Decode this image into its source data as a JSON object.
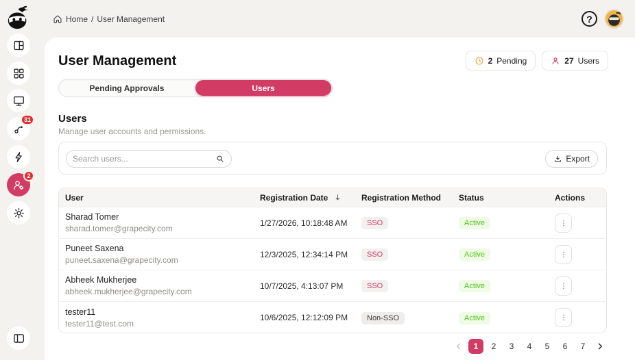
{
  "topbar": {
    "breadcrumb": {
      "home": "Home",
      "separator": "/",
      "current": "User Management"
    }
  },
  "header": {
    "title": "User Management",
    "pending_button": {
      "count": "2",
      "label": "Pending"
    },
    "users_button": {
      "count": "27",
      "label": "Users"
    }
  },
  "tabs": {
    "pending": "Pending Approvals",
    "users": "Users"
  },
  "section": {
    "title": "Users",
    "subtitle": "Manage user accounts and permissions."
  },
  "toolbar": {
    "search_placeholder": "Search users...",
    "export_label": "Export"
  },
  "sidebar": {
    "webhook_badge": "31",
    "user_management_badge": "2"
  },
  "icons": {
    "question_mark": "?"
  },
  "table": {
    "columns": [
      "User",
      "Registration Date",
      "Registration Method",
      "Status",
      "Actions"
    ],
    "rows": [
      {
        "name": "Sharad Tomer",
        "email": "sharad.tomer@grapecity.com",
        "date": "1/27/2026, 10:18:48 AM",
        "method": "SSO",
        "status": "Active"
      },
      {
        "name": "Puneet Saxena",
        "email": "puneet.saxena@grapecity.com",
        "date": "12/3/2025, 12:34:14 PM",
        "method": "SSO",
        "status": "Active"
      },
      {
        "name": "Abheek Mukherjee",
        "email": "abheek.mukherjee@grapecity.com",
        "date": "10/7/2025, 4:13:07 PM",
        "method": "SSO",
        "status": "Active"
      },
      {
        "name": "tester11",
        "email": "tester11@test.com",
        "date": "10/6/2025, 12:12:09 PM",
        "method": "Non-SSO",
        "status": "Active"
      }
    ]
  },
  "pagination": {
    "pages": [
      "1",
      "2",
      "3",
      "4",
      "5",
      "6",
      "7"
    ],
    "active": "1"
  },
  "colors": {
    "accent": "#d23c64",
    "notification_red": "#e03131",
    "status_green_text": "#57c41d",
    "status_green_bg": "#effbe4",
    "pending_amber": "#e9a63a",
    "surface_gray": "#f3f2ef"
  }
}
